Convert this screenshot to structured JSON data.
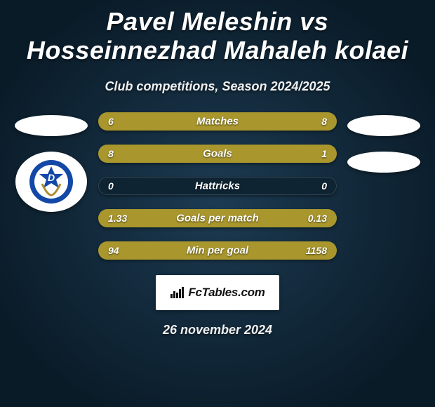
{
  "title_color": "#ffffff",
  "subtitle_color": "#f0f0f0",
  "bar_empty_color": "#0e2433",
  "header": {
    "title": "Pavel Meleshin vs Hosseinnezhad Mahaleh kolaei",
    "subtitle": "Club competitions, Season 2024/2025"
  },
  "left_team": {
    "oval_color": "#ffffff",
    "logo_bg": "#ffffff",
    "logo_primary": "#1448a6",
    "logo_accent": "#b08b2e"
  },
  "right_team": {
    "oval_color": "#ffffff"
  },
  "stats": [
    {
      "label": "Matches",
      "left_val": "6",
      "right_val": "8",
      "left_pct": 42.9,
      "right_pct": 57.1,
      "left_color": "#a9972d",
      "right_color": "#a9972d"
    },
    {
      "label": "Goals",
      "left_val": "8",
      "right_val": "1",
      "left_pct": 88.9,
      "right_pct": 11.1,
      "left_color": "#a9972d",
      "right_color": "#a9972d"
    },
    {
      "label": "Hattricks",
      "left_val": "0",
      "right_val": "0",
      "left_pct": 0,
      "right_pct": 0,
      "left_color": "#a9972d",
      "right_color": "#a9972d"
    },
    {
      "label": "Goals per match",
      "left_val": "1.33",
      "right_val": "0.13",
      "left_pct": 91.1,
      "right_pct": 8.9,
      "left_color": "#a9972d",
      "right_color": "#a9972d"
    },
    {
      "label": "Min per goal",
      "left_val": "94",
      "right_val": "1158",
      "left_pct": 7.5,
      "right_pct": 92.5,
      "left_color": "#a9972d",
      "right_color": "#a9972d"
    }
  ],
  "brand": {
    "text": "FcTables.com",
    "text_color": "#111111",
    "icon_color": "#111111",
    "box_bg": "#ffffff"
  },
  "footer": {
    "date": "26 november 2024",
    "date_color": "#f0f0f0"
  }
}
